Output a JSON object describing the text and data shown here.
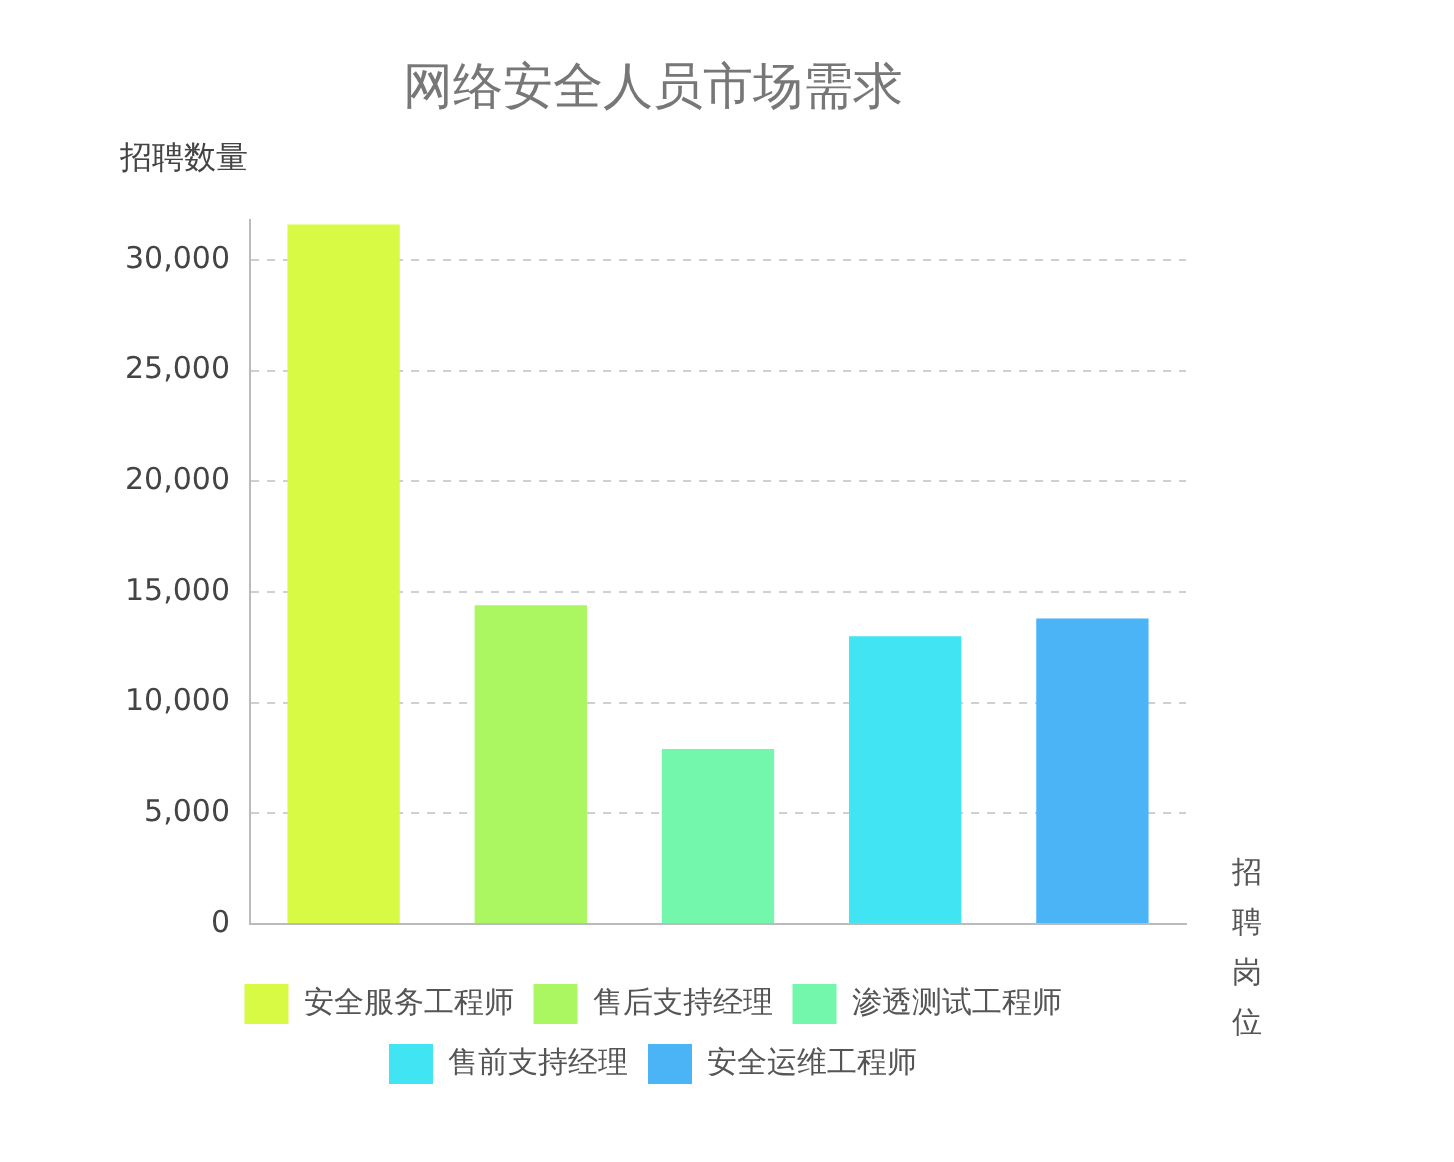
{
  "chart_data": {
    "type": "bar",
    "title": "网络安全人员市场需求",
    "ylabel": "招聘数量",
    "xlabel": "招聘岗位",
    "categories": [
      null,
      null,
      null,
      null,
      null
    ],
    "series": [
      {
        "name": "安全服务工程师",
        "color": "#d8fa44",
        "values": [
          31600,
          null,
          null,
          null,
          null
        ]
      },
      {
        "name": "售后支持经理",
        "color": "#aaf762",
        "values": [
          null,
          14400,
          null,
          null,
          null
        ]
      },
      {
        "name": "渗透测试工程师",
        "color": "#72f7ac",
        "values": [
          null,
          null,
          7900,
          null,
          null
        ]
      },
      {
        "name": "售前支持经理",
        "color": "#40e4f2",
        "values": [
          null,
          null,
          null,
          13000,
          null
        ]
      },
      {
        "name": "安全运维工程师",
        "color": "#4bb4f7",
        "values": [
          null,
          null,
          null,
          null,
          13800
        ]
      }
    ],
    "ylim": [
      0,
      31800
    ],
    "yticks": [
      0,
      {
        "value": 5000,
        "label": "5,000"
      },
      {
        "value": 10000,
        "label": "10,000"
      },
      {
        "value": 15000,
        "label": "15,000"
      },
      {
        "value": 20000,
        "label": "20,000"
      },
      {
        "value": 25000,
        "label": "25,000"
      },
      {
        "value": 30000,
        "label": "30,000"
      }
    ],
    "grid": "y",
    "legend": "bottom",
    "tick_labels": "y"
  }
}
